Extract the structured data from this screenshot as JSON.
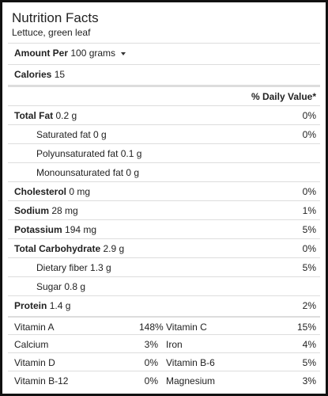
{
  "header": {
    "title": "Nutrition Facts",
    "subtitle": "Lettuce, green leaf"
  },
  "serving": {
    "label": "Amount Per",
    "amount": "100 grams"
  },
  "calories": {
    "label": "Calories",
    "value": "15"
  },
  "daily_value_header": "% Daily Value*",
  "nutrients": [
    {
      "label": "Total Fat",
      "amount": "0.2 g",
      "daily": "0%"
    },
    {
      "label": "Saturated fat 0 g",
      "daily": "0%"
    },
    {
      "label": "Polyunsaturated fat 0.1 g"
    },
    {
      "label": "Monounsaturated fat 0 g"
    },
    {
      "label": "Cholesterol",
      "amount": "0 mg",
      "daily": "0%"
    },
    {
      "label": "Sodium",
      "amount": "28 mg",
      "daily": "1%"
    },
    {
      "label": "Potassium",
      "amount": "194 mg",
      "daily": "5%"
    },
    {
      "label": "Total Carbohydrate",
      "amount": "2.9 g",
      "daily": "0%"
    },
    {
      "label": "Dietary fiber 1.3 g",
      "daily": "5%"
    },
    {
      "label": "Sugar 0.8 g"
    },
    {
      "label": "Protein",
      "amount": "1.4 g",
      "daily": "2%"
    }
  ],
  "vitamins": [
    [
      {
        "name": "Vitamin A",
        "daily": "148%"
      },
      {
        "name": "Vitamin C",
        "daily": "15%"
      }
    ],
    [
      {
        "name": "Calcium",
        "daily": "3%"
      },
      {
        "name": "Iron",
        "daily": "4%"
      }
    ],
    [
      {
        "name": "Vitamin D",
        "daily": "0%"
      },
      {
        "name": "Vitamin B-6",
        "daily": "5%"
      }
    ],
    [
      {
        "name": "Vitamin B-12",
        "daily": "0%"
      },
      {
        "name": "Magnesium",
        "daily": "3%"
      }
    ]
  ]
}
